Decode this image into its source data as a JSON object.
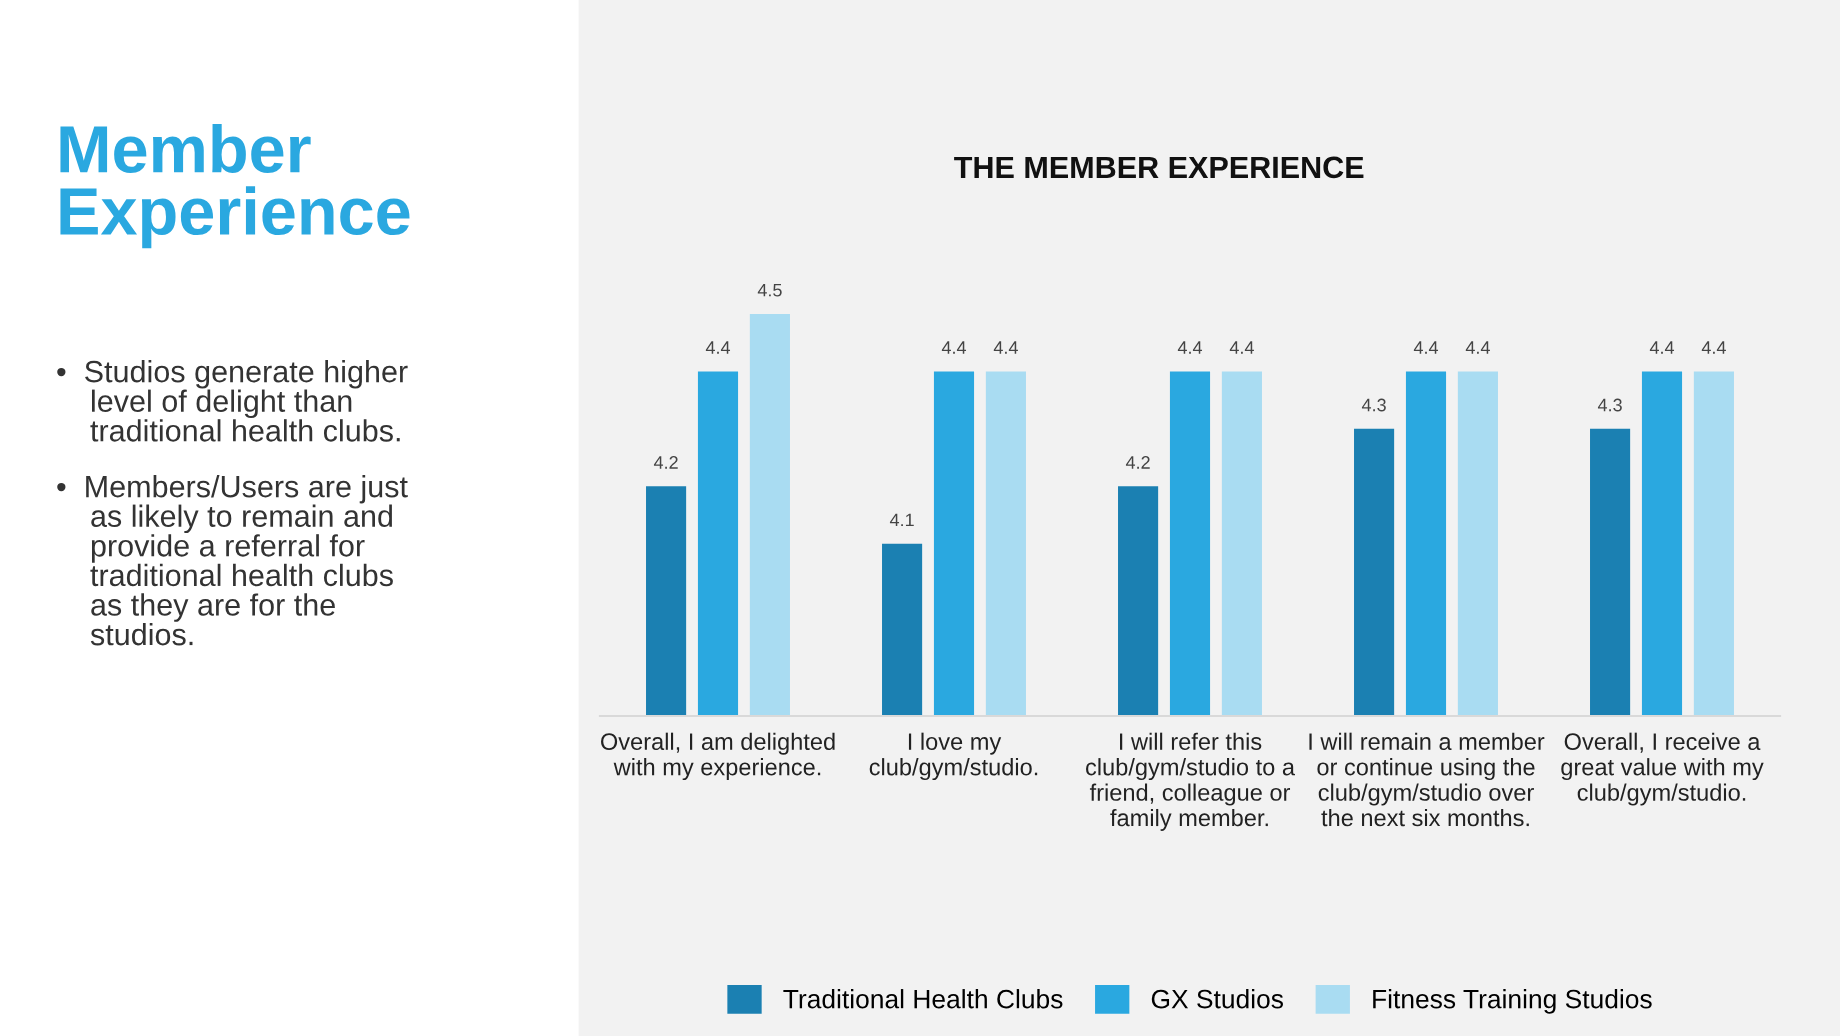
{
  "chart_data": {
    "type": "bar",
    "title": "THE MEMBER EXPERIENCE",
    "categories": [
      "Overall, I am delighted\nwith my experience.",
      "I love my\nclub/gym/studio.",
      "I will refer this\nclub/gym/studio to a\nfriend, colleague or\nfamily member.",
      "I will remain a member\nor continue using the\nclub/gym/studio over\nthe next six months.",
      "Overall, I receive a\ngreat value with my\nclub/gym/studio."
    ],
    "ylim": [
      3.8,
      4.5
    ],
    "data_labels": true,
    "series": [
      {
        "name": "Traditional Health Clubs",
        "color": "#1b80b2",
        "values": [
          4.2,
          4.1,
          4.2,
          4.3,
          4.3
        ]
      },
      {
        "name": "GX Studios",
        "color": "#2aa8e0",
        "values": [
          4.4,
          4.4,
          4.4,
          4.4,
          4.4
        ]
      },
      {
        "name": "Fitness Training Studios",
        "color": "#a9dcf2",
        "values": [
          4.5,
          4.4,
          4.4,
          4.4,
          4.4
        ]
      }
    ],
    "legend": "bottom",
    "annotations": [
      "Member\nExperience",
      "•  Studios generate higher\n    level of delight than\n    traditional health clubs.",
      "•  Members/Users are just\n    as likely to remain and\n    provide a referral for\n    traditional health clubs\n    as they are for the\n    studios."
    ]
  }
}
